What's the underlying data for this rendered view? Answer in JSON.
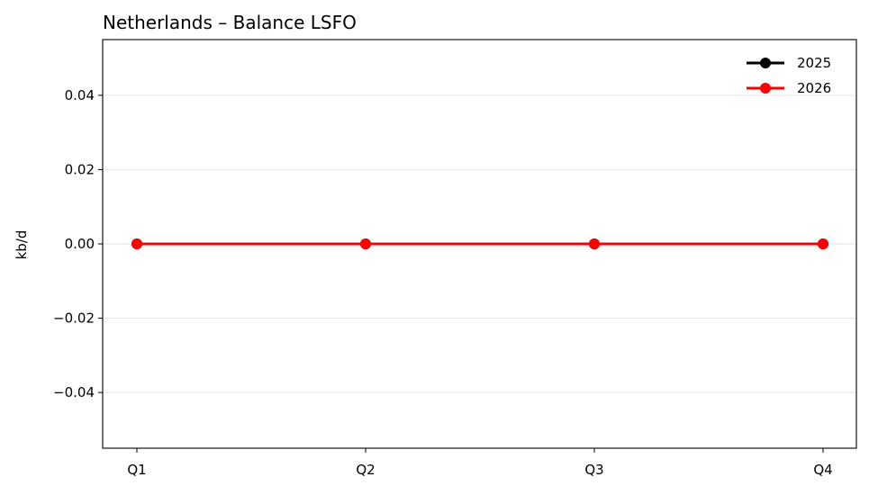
{
  "chart_data": {
    "type": "line",
    "title": "Netherlands – Balance LSFO",
    "xlabel": "",
    "ylabel": "kb/d",
    "categories": [
      "Q1",
      "Q2",
      "Q3",
      "Q4"
    ],
    "ylim": [
      -0.055,
      0.055
    ],
    "yticks": [
      -0.04,
      -0.02,
      0.0,
      0.02,
      0.04
    ],
    "ytick_labels": [
      "−0.04",
      "−0.02",
      "0.00",
      "0.02",
      "0.04"
    ],
    "grid": "horizontal",
    "legend_position": "top-right",
    "series": [
      {
        "name": "2025",
        "values": [
          0,
          0,
          0,
          0
        ],
        "color": "#000000",
        "marker": "circle"
      },
      {
        "name": "2026",
        "values": [
          0,
          0,
          0,
          0
        ],
        "color": "#ff0000",
        "marker": "circle"
      }
    ]
  }
}
